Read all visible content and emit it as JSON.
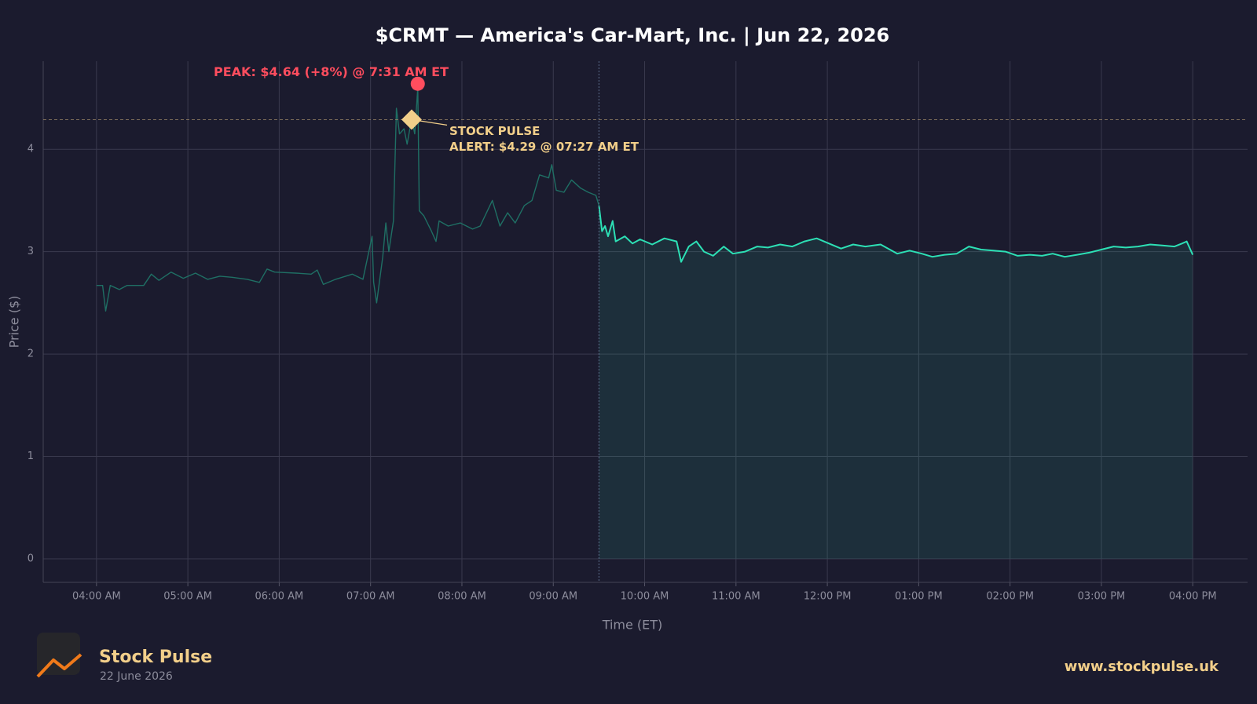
{
  "chart_data": {
    "type": "line",
    "title": "$CRMT — America's Car-Mart, Inc.  |  Jun 22, 2026",
    "xlabel": "Time (ET)",
    "ylabel": "Price ($)",
    "xlim": [
      "03:25",
      "16:36"
    ],
    "ylim": [
      -0.23,
      4.86
    ],
    "xticks": [
      {
        "value": "04:00",
        "label": "04:00 AM"
      },
      {
        "value": "05:00",
        "label": "05:00 AM"
      },
      {
        "value": "06:00",
        "label": "06:00 AM"
      },
      {
        "value": "07:00",
        "label": "07:00 AM"
      },
      {
        "value": "08:00",
        "label": "08:00 AM"
      },
      {
        "value": "09:00",
        "label": "09:00 AM"
      },
      {
        "value": "10:00",
        "label": "10:00 AM"
      },
      {
        "value": "11:00",
        "label": "11:00 AM"
      },
      {
        "value": "12:00",
        "label": "12:00 PM"
      },
      {
        "value": "13:00",
        "label": "01:00 PM"
      },
      {
        "value": "14:00",
        "label": "02:00 PM"
      },
      {
        "value": "15:00",
        "label": "03:00 PM"
      },
      {
        "value": "16:00",
        "label": "04:00 PM"
      }
    ],
    "yticks": [
      0,
      1,
      2,
      3,
      4
    ],
    "grid": true,
    "session_divider": "09:30",
    "series": [
      {
        "color": "#1f6f64",
        "fill": false,
        "x": [
          "04:00",
          "04:04",
          "04:06",
          "04:09",
          "04:15",
          "04:20",
          "04:31",
          "04:36",
          "04:41",
          "04:49",
          "04:57",
          "05:05",
          "05:13",
          "05:21",
          "05:29",
          "05:39",
          "05:47",
          "05:52",
          "05:57",
          "06:11",
          "06:21",
          "06:25",
          "06:29",
          "06:37",
          "06:48",
          "06:55",
          "07:01",
          "07:02",
          "07:04",
          "07:08",
          "07:10",
          "07:12",
          "07:15",
          "07:17",
          "07:19",
          "07:22",
          "07:24",
          "07:27",
          "07:29",
          "07:31",
          "07:32",
          "07:35",
          "07:40",
          "07:43",
          "07:45",
          "07:51",
          "07:59",
          "08:07",
          "08:12",
          "08:20",
          "08:25",
          "08:30",
          "08:35",
          "08:41",
          "08:46",
          "08:51",
          "08:57",
          "08:59",
          "09:02",
          "09:07",
          "09:12",
          "09:18",
          "09:23",
          "09:28",
          "09:30"
        ],
        "values": [
          2.67,
          2.67,
          2.42,
          2.67,
          2.63,
          2.67,
          2.67,
          2.78,
          2.72,
          2.8,
          2.74,
          2.79,
          2.73,
          2.76,
          2.75,
          2.73,
          2.7,
          2.83,
          2.8,
          2.79,
          2.78,
          2.82,
          2.68,
          2.73,
          2.78,
          2.73,
          3.15,
          2.7,
          2.5,
          2.95,
          3.28,
          3.0,
          3.3,
          4.4,
          4.15,
          4.2,
          4.05,
          4.3,
          4.15,
          4.6,
          3.4,
          3.35,
          3.2,
          3.1,
          3.3,
          3.25,
          3.28,
          3.22,
          3.25,
          3.5,
          3.25,
          3.38,
          3.28,
          3.45,
          3.5,
          3.75,
          3.72,
          3.85,
          3.6,
          3.58,
          3.7,
          3.62,
          3.58,
          3.55,
          3.45
        ]
      },
      {
        "color": "#2de0b5",
        "fill": true,
        "x": [
          "09:30",
          "09:32",
          "09:34",
          "09:36",
          "09:39",
          "09:41",
          "09:47",
          "09:52",
          "09:57",
          "10:05",
          "10:13",
          "10:21",
          "10:24",
          "10:29",
          "10:34",
          "10:39",
          "10:45",
          "10:52",
          "10:58",
          "11:06",
          "11:14",
          "11:21",
          "11:29",
          "11:37",
          "11:45",
          "11:53",
          "12:01",
          "12:09",
          "12:17",
          "12:25",
          "12:35",
          "12:46",
          "12:54",
          "13:02",
          "13:09",
          "13:17",
          "13:25",
          "13:33",
          "13:41",
          "13:49",
          "13:57",
          "14:05",
          "14:13",
          "14:21",
          "14:28",
          "14:36",
          "14:44",
          "14:52",
          "15:00",
          "15:08",
          "15:16",
          "15:24",
          "15:32",
          "15:40",
          "15:48",
          "15:53",
          "15:56",
          "16:00"
        ],
        "values": [
          3.45,
          3.2,
          3.25,
          3.15,
          3.3,
          3.1,
          3.15,
          3.08,
          3.12,
          3.07,
          3.13,
          3.1,
          2.9,
          3.05,
          3.1,
          3.0,
          2.96,
          3.05,
          2.98,
          3.0,
          3.05,
          3.04,
          3.07,
          3.05,
          3.1,
          3.13,
          3.08,
          3.03,
          3.07,
          3.05,
          3.07,
          2.98,
          3.01,
          2.98,
          2.95,
          2.97,
          2.98,
          3.05,
          3.02,
          3.01,
          3.0,
          2.96,
          2.97,
          2.96,
          2.98,
          2.95,
          2.97,
          2.99,
          3.02,
          3.05,
          3.04,
          3.05,
          3.07,
          3.06,
          3.05,
          3.08,
          3.1,
          2.97
        ]
      }
    ],
    "annotations": [
      {
        "kind": "peak",
        "text": [
          "PEAK: $4.64 (+8%) @ 7:31 AM ET"
        ],
        "x": "07:31",
        "y": 4.64,
        "color": "#ff4d5e"
      },
      {
        "kind": "alert",
        "text": [
          "STOCK PULSE",
          "ALERT: $4.29 @ 07:27 AM ET"
        ],
        "x": "07:27",
        "y": 4.29,
        "color": "#f2cf8a"
      }
    ]
  },
  "footer": {
    "brand": "Stock Pulse",
    "date": "22 June 2026",
    "url": "www.stockpulse.uk"
  }
}
